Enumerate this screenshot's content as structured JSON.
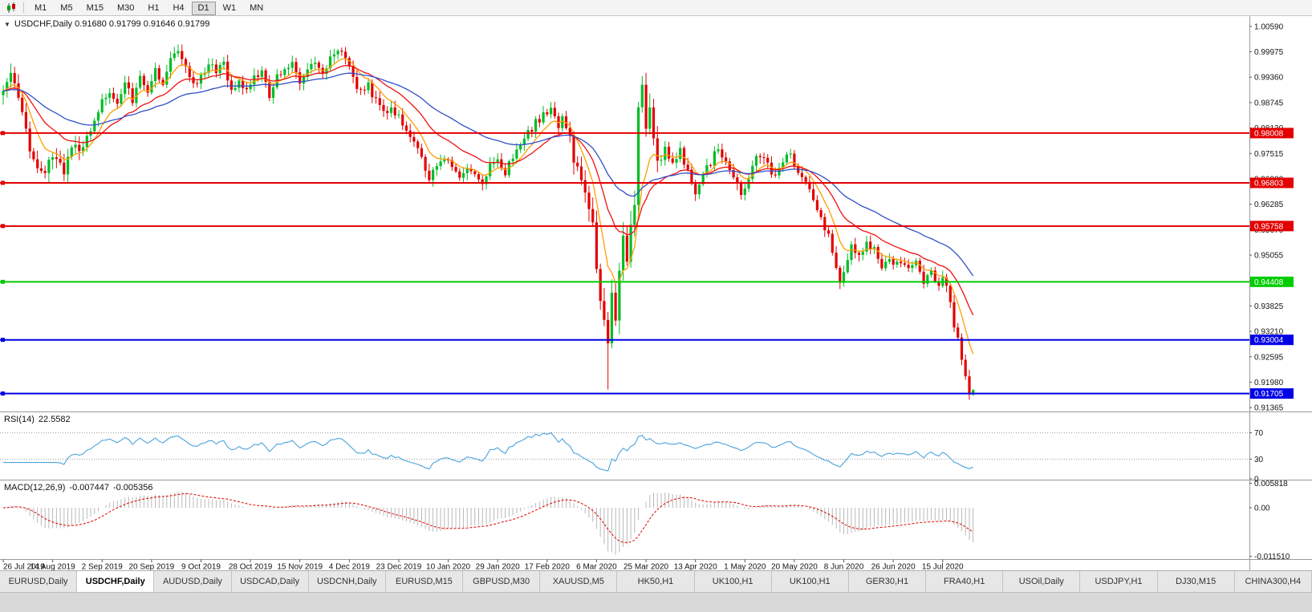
{
  "toolbar": {
    "timeframes": [
      "M1",
      "M5",
      "M15",
      "M30",
      "H1",
      "H4",
      "D1",
      "W1",
      "MN"
    ],
    "active_timeframe": "D1"
  },
  "chart": {
    "symbol": "USDCHF",
    "timeframe": "Daily",
    "open": "0.91680",
    "high": "0.91799",
    "low": "0.91646",
    "close": "0.91799",
    "title_text": "USDCHF,Daily 0.91680 0.91799 0.91646 0.91799",
    "collapse_glyph": "▼"
  },
  "y_axis": {
    "labels": [
      "1.00590",
      "0.99975",
      "0.99360",
      "0.98745",
      "0.98130",
      "0.97515",
      "0.96900",
      "0.96285",
      "0.95670",
      "0.95055",
      "0.94440",
      "0.93825",
      "0.93210",
      "0.92595",
      "0.91980",
      "0.91365"
    ]
  },
  "x_axis": {
    "labels": [
      "26 Jul 2019",
      "14 Aug 2019",
      "2 Sep 2019",
      "20 Sep 2019",
      "9 Oct 2019",
      "28 Oct 2019",
      "15 Nov 2019",
      "4 Dec 2019",
      "23 Dec 2019",
      "10 Jan 2020",
      "29 Jan 2020",
      "17 Feb 2020",
      "6 Mar 2020",
      "25 Mar 2020",
      "13 Apr 2020",
      "1 May 2020",
      "20 May 2020",
      "8 Jun 2020",
      "26 Jun 2020",
      "15 Jul 2020"
    ]
  },
  "hlines": [
    {
      "price": 0.98008,
      "label": "0.98008",
      "color": "#E30000"
    },
    {
      "price": 0.96803,
      "label": "0.96803",
      "color": "#E30000"
    },
    {
      "price": 0.95758,
      "label": "0.95758",
      "color": "#E30000"
    },
    {
      "price": 0.94408,
      "label": "0.94408",
      "color": "#00CC00"
    },
    {
      "price": 0.93004,
      "label": "0.93004",
      "color": "#0000E6"
    },
    {
      "price": 0.91705,
      "label": "0.91705",
      "color": "#0000E6"
    }
  ],
  "rsi": {
    "label": "RSI(14)",
    "value": "22.5582",
    "levels": [
      70,
      30
    ],
    "axis_labels": [
      "70",
      "30",
      "0"
    ],
    "color": "#4AA3DC"
  },
  "macd": {
    "label": "MACD(12,26,9)",
    "value_main": "-0.007447",
    "value_signal": "-0.005356",
    "axis_labels": [
      "0.005818",
      "0.00",
      "-0.011510"
    ],
    "hist_color": "#B8B8B8",
    "signal_color": "#DD0000"
  },
  "tabs": {
    "active_index": 1,
    "items": [
      "EURUSD,Daily",
      "USDCHF,Daily",
      "AUDUSD,Daily",
      "USDCAD,Daily",
      "USDCNH,Daily",
      "EURUSD,M15",
      "GBPUSD,M30",
      "XAUUSD,M5",
      "HK50,H1",
      "UK100,H1",
      "UK100,H1",
      "GER30,H1",
      "FRA40,H1",
      "USOil,Daily",
      "USDJPY,H1",
      "DJ30,M15",
      "CHINA300,H4"
    ]
  },
  "colors": {
    "up": "#00BD27",
    "down": "#E30000",
    "ma_fast": "#FF9E00",
    "ma_mid": "#EE1010",
    "ma_slow": "#3050C8",
    "separator": "#9A9A9A"
  },
  "chart_data": {
    "type": "candlestick",
    "title": "USDCHF,Daily",
    "symbol": "USDCHF",
    "timeframe": "Daily",
    "bar_count": 256,
    "last_ohlc": {
      "open": 0.9168,
      "high": 0.91799,
      "low": 0.91646,
      "close": 0.91799
    },
    "y_range": [
      0.91365,
      1.0059
    ],
    "x_range_dates": [
      "26 Jul 2019",
      "late Jul 2020"
    ],
    "close_path_anchors": [
      [
        0,
        0.991
      ],
      [
        2,
        0.9935
      ],
      [
        4,
        0.988
      ],
      [
        6,
        0.98
      ],
      [
        8,
        0.974
      ],
      [
        10,
        0.97
      ],
      [
        12,
        0.972
      ],
      [
        14,
        0.9748
      ],
      [
        16,
        0.9712
      ],
      [
        18,
        0.977
      ],
      [
        20,
        0.9748
      ],
      [
        22,
        0.98
      ],
      [
        24,
        0.9828
      ],
      [
        26,
        0.9872
      ],
      [
        28,
        0.9898
      ],
      [
        30,
        0.9862
      ],
      [
        32,
        0.9915
      ],
      [
        34,
        0.9882
      ],
      [
        36,
        0.9935
      ],
      [
        38,
        0.9908
      ],
      [
        40,
        0.9952
      ],
      [
        42,
        0.9922
      ],
      [
        44,
        0.9985
      ],
      [
        46,
        0.9996
      ],
      [
        48,
        0.9958
      ],
      [
        50,
        0.9922
      ],
      [
        52,
        0.9938
      ],
      [
        54,
        0.9976
      ],
      [
        56,
        0.9946
      ],
      [
        58,
        0.9966
      ],
      [
        60,
        0.9906
      ],
      [
        62,
        0.9932
      ],
      [
        64,
        0.9896
      ],
      [
        66,
        0.9932
      ],
      [
        68,
        0.9956
      ],
      [
        70,
        0.9896
      ],
      [
        72,
        0.9936
      ],
      [
        74,
        0.9962
      ],
      [
        76,
        0.9976
      ],
      [
        78,
        0.9922
      ],
      [
        80,
        0.9946
      ],
      [
        82,
        0.9972
      ],
      [
        84,
        0.9942
      ],
      [
        86,
        0.9986
      ],
      [
        88,
        1.0
      ],
      [
        90,
        0.998
      ],
      [
        92,
        0.993
      ],
      [
        94,
        0.9896
      ],
      [
        96,
        0.9916
      ],
      [
        98,
        0.9876
      ],
      [
        100,
        0.9846
      ],
      [
        102,
        0.987
      ],
      [
        104,
        0.9836
      ],
      [
        106,
        0.98
      ],
      [
        108,
        0.9776
      ],
      [
        110,
        0.9736
      ],
      [
        112,
        0.9696
      ],
      [
        114,
        0.9712
      ],
      [
        116,
        0.9736
      ],
      [
        118,
        0.9722
      ],
      [
        120,
        0.9686
      ],
      [
        122,
        0.9716
      ],
      [
        124,
        0.9696
      ],
      [
        126,
        0.9672
      ],
      [
        128,
        0.9726
      ],
      [
        130,
        0.9736
      ],
      [
        132,
        0.9706
      ],
      [
        134,
        0.9746
      ],
      [
        136,
        0.9776
      ],
      [
        138,
        0.98
      ],
      [
        140,
        0.9826
      ],
      [
        142,
        0.9846
      ],
      [
        144,
        0.9856
      ],
      [
        146,
        0.9822
      ],
      [
        147,
        0.9846
      ],
      [
        149,
        0.9792
      ],
      [
        151,
        0.9702
      ],
      [
        153,
        0.9642
      ],
      [
        155,
        0.9566
      ],
      [
        156,
        0.9482
      ],
      [
        157,
        0.9406
      ],
      [
        158,
        0.9346
      ],
      [
        159,
        0.9292
      ],
      [
        160,
        0.9422
      ],
      [
        161,
        0.9332
      ],
      [
        162,
        0.9466
      ],
      [
        163,
        0.9562
      ],
      [
        164,
        0.9492
      ],
      [
        165,
        0.9562
      ],
      [
        166,
        0.9622
      ],
      [
        167,
        0.9882
      ],
      [
        168,
        0.9906
      ],
      [
        169,
        0.9816
      ],
      [
        170,
        0.9862
      ],
      [
        171,
        0.9772
      ],
      [
        172,
        0.9716
      ],
      [
        174,
        0.9772
      ],
      [
        176,
        0.9722
      ],
      [
        178,
        0.9756
      ],
      [
        180,
        0.9702
      ],
      [
        182,
        0.9652
      ],
      [
        184,
        0.9692
      ],
      [
        186,
        0.9732
      ],
      [
        188,
        0.9762
      ],
      [
        190,
        0.9736
      ],
      [
        192,
        0.9692
      ],
      [
        194,
        0.9656
      ],
      [
        195,
        0.9672
      ],
      [
        197,
        0.9722
      ],
      [
        199,
        0.9752
      ],
      [
        201,
        0.9726
      ],
      [
        203,
        0.9692
      ],
      [
        205,
        0.9732
      ],
      [
        207,
        0.9752
      ],
      [
        208,
        0.9722
      ],
      [
        210,
        0.9702
      ],
      [
        212,
        0.9656
      ],
      [
        214,
        0.9616
      ],
      [
        216,
        0.9576
      ],
      [
        218,
        0.9522
      ],
      [
        219,
        0.9472
      ],
      [
        220,
        0.9432
      ],
      [
        221,
        0.9462
      ],
      [
        222,
        0.9502
      ],
      [
        223,
        0.9522
      ],
      [
        225,
        0.9496
      ],
      [
        227,
        0.9536
      ],
      [
        229,
        0.9516
      ],
      [
        231,
        0.9482
      ],
      [
        233,
        0.9506
      ],
      [
        234,
        0.9472
      ],
      [
        236,
        0.9496
      ],
      [
        238,
        0.9466
      ],
      [
        240,
        0.9486
      ],
      [
        242,
        0.9446
      ],
      [
        244,
        0.9466
      ],
      [
        246,
        0.9426
      ],
      [
        247,
        0.9446
      ],
      [
        248,
        0.9432
      ],
      [
        249,
        0.9392
      ],
      [
        250,
        0.9336
      ],
      [
        251,
        0.9306
      ],
      [
        252,
        0.9252
      ],
      [
        253,
        0.9212
      ],
      [
        254,
        0.9168
      ],
      [
        255,
        0.91799
      ]
    ],
    "special_bars": [
      {
        "index": 88,
        "high": 1.0004
      },
      {
        "index": 159,
        "low": 0.918
      },
      {
        "index": 255,
        "open": 0.9168,
        "high": 0.91799,
        "low": 0.91646,
        "close": 0.91799
      }
    ],
    "horizontal_lines": [
      0.98008,
      0.96803,
      0.95758,
      0.94408,
      0.93004,
      0.91705
    ],
    "moving_averages": [
      {
        "name": "fast",
        "period": 8,
        "color": "#FF9E00"
      },
      {
        "name": "medium",
        "period": 20,
        "color": "#EE1010"
      },
      {
        "name": "slow",
        "period": 45,
        "color": "#3050C8"
      }
    ],
    "indicators": [
      {
        "name": "RSI",
        "params": "14",
        "last_value": 22.5582,
        "levels": [
          70,
          30
        ]
      },
      {
        "name": "MACD",
        "params": "12,26,9",
        "last_main": -0.007447,
        "last_signal": -0.005356,
        "scale": [
          -0.01151,
          0.005818
        ]
      }
    ]
  }
}
